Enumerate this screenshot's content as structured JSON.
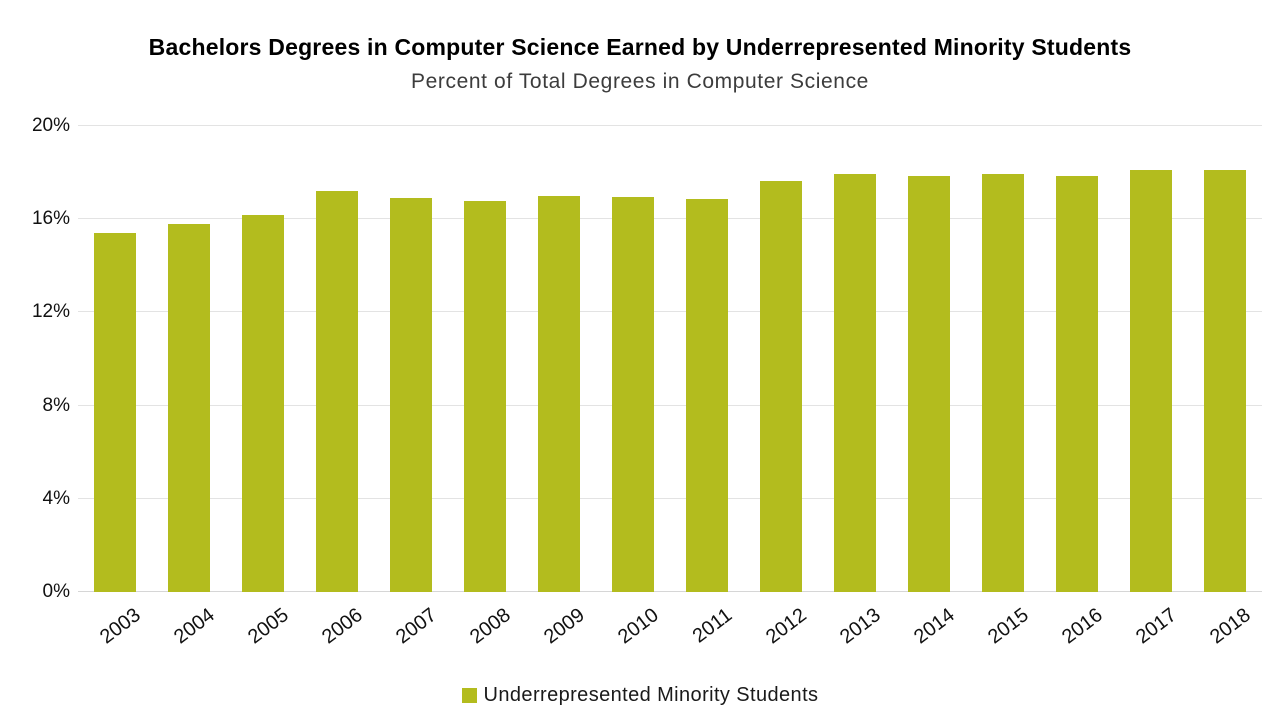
{
  "header": {
    "title": "Bachelors Degrees in Computer Science Earned by Underrepresented Minority Students",
    "subtitle": "Percent of Total Degrees in Computer Science"
  },
  "legend": {
    "label": "Underrepresented Minority Students"
  },
  "colors": {
    "bar": "#b3bc1e",
    "gridline": "#e3e3e3",
    "text": "#111111"
  },
  "chart_data": {
    "type": "bar",
    "title": "Bachelors Degrees in Computer Science Earned by Underrepresented Minority Students",
    "subtitle": "Percent of Total Degrees in Computer Science",
    "categories": [
      "2003",
      "2004",
      "2005",
      "2006",
      "2007",
      "2008",
      "2009",
      "2010",
      "2011",
      "2012",
      "2013",
      "2014",
      "2015",
      "2016",
      "2017",
      "2018"
    ],
    "values": [
      15.4,
      15.8,
      16.2,
      17.2,
      16.9,
      16.8,
      17.0,
      16.95,
      16.85,
      17.65,
      17.95,
      17.85,
      17.95,
      17.85,
      18.1,
      18.1
    ],
    "value_unit": "%",
    "xlabel": "",
    "ylabel": "Percent of Total Degrees in Computer Science",
    "ylim": [
      0,
      20
    ],
    "yticks": [
      0,
      4,
      8,
      12,
      16,
      20
    ],
    "ytick_format": "{v}%",
    "grid": true,
    "legend": [
      "Underrepresented Minority Students"
    ],
    "legend_position": "bottom"
  }
}
